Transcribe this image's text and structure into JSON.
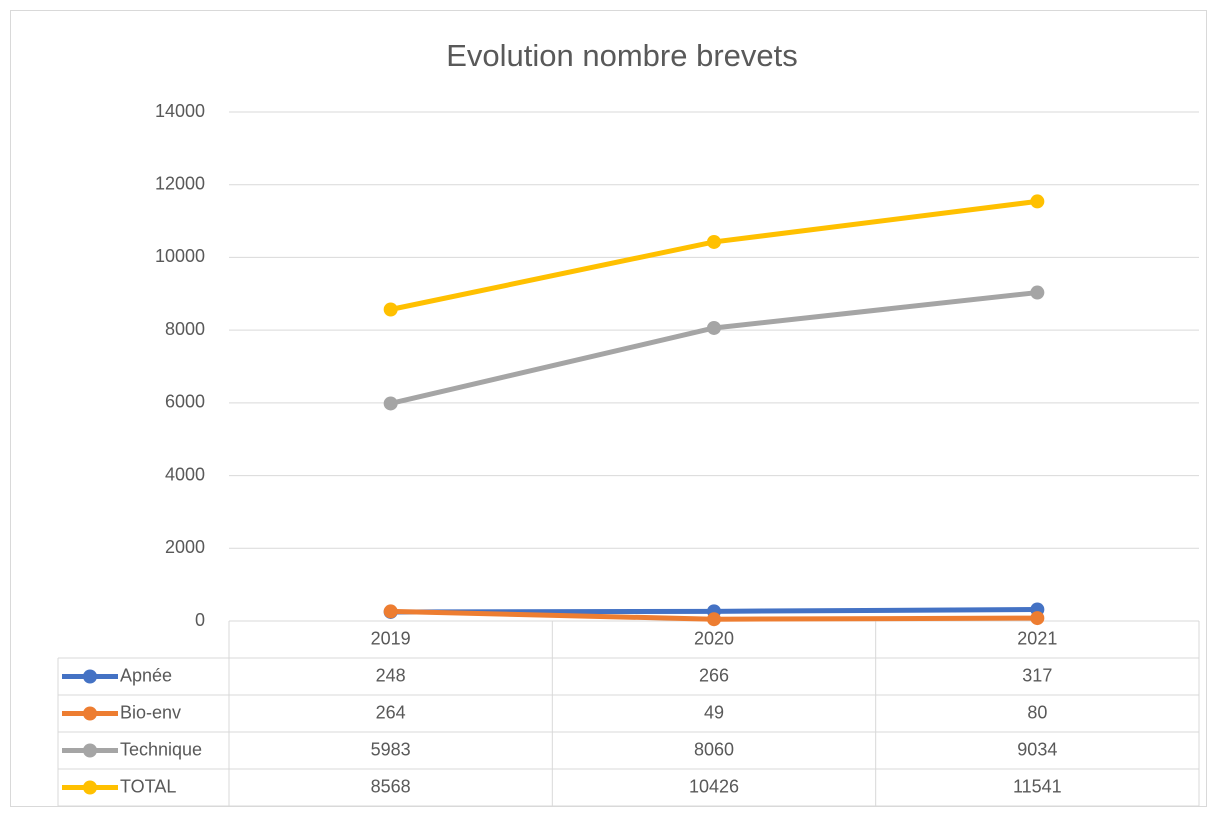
{
  "chart_data": {
    "type": "line",
    "title": "Evolution nombre brevets",
    "categories": [
      "2019",
      "2020",
      "2021"
    ],
    "series": [
      {
        "name": "Apnée",
        "color": "#4472c4",
        "values": [
          248,
          266,
          317
        ]
      },
      {
        "name": "Bio-env",
        "color": "#ed7d31",
        "values": [
          264,
          49,
          80
        ]
      },
      {
        "name": "Technique",
        "color": "#a5a5a5",
        "values": [
          5983,
          8060,
          9034
        ]
      },
      {
        "name": "TOTAL",
        "color": "#ffc000",
        "values": [
          8568,
          10426,
          11541
        ]
      }
    ],
    "ylim": [
      0,
      14000
    ],
    "yticks": [
      0,
      2000,
      4000,
      6000,
      8000,
      10000,
      12000,
      14000
    ],
    "grid": true
  }
}
